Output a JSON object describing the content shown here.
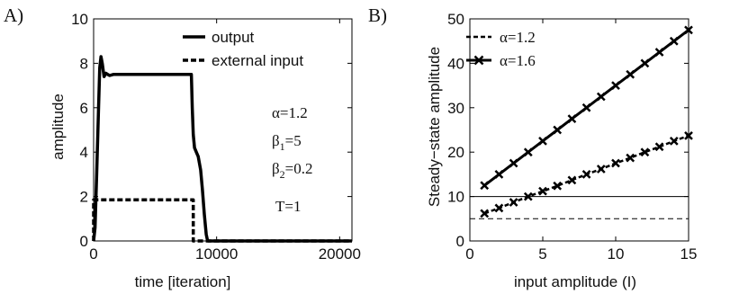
{
  "chart_data": [
    {
      "panel_label": "A)",
      "type": "line",
      "xlabel": "time [iteration]",
      "ylabel": "amplitude",
      "xlim": [
        0,
        21000
      ],
      "ylim": [
        0,
        10
      ],
      "x_ticks": [
        "0",
        "10000",
        "20000"
      ],
      "y_ticks": [
        "0",
        "2",
        "4",
        "6",
        "8",
        "10"
      ],
      "legend_position": "top-right",
      "series": [
        {
          "name": "output",
          "style": "solid",
          "x": [
            0,
            120,
            250,
            400,
            500,
            600,
            700,
            850,
            1000,
            1150,
            1300,
            1600,
            2000,
            4000,
            6000,
            7950,
            8020,
            8100,
            8200,
            8350,
            8500,
            8700,
            8850,
            9000,
            9150,
            9250,
            9300,
            9400,
            21000
          ],
          "y": [
            0,
            0.6,
            3.0,
            6.0,
            7.8,
            8.3,
            8.0,
            7.4,
            7.55,
            7.5,
            7.45,
            7.5,
            7.5,
            7.5,
            7.5,
            7.5,
            6.0,
            4.8,
            4.2,
            4.0,
            3.8,
            3.2,
            2.3,
            1.2,
            0.3,
            0.05,
            0,
            0,
            0
          ]
        },
        {
          "name": "external input",
          "style": "dashed",
          "x": [
            0,
            0,
            8100,
            8100,
            21000
          ],
          "y": [
            0,
            1.85,
            1.85,
            0,
            0
          ]
        }
      ],
      "annotations": {
        "alpha": "α=1.2",
        "beta1_base": "β",
        "beta1_sub": "1",
        "beta1_val": "=5",
        "beta2_base": "β",
        "beta2_sub": "2",
        "beta2_val": "=0.2",
        "T": "T=1"
      }
    },
    {
      "panel_label": "B)",
      "type": "line",
      "xlabel": "input amplitude (I)",
      "ylabel": "Steady−state  amplitude",
      "xlim": [
        0,
        15
      ],
      "ylim": [
        0,
        50
      ],
      "x_ticks": [
        "0",
        "5",
        "10",
        "15"
      ],
      "y_ticks": [
        "0",
        "10",
        "20",
        "30",
        "40",
        "50"
      ],
      "legend_position": "top-left",
      "series": [
        {
          "name": "α=1.2",
          "style": "dashed",
          "marker": "x",
          "x": [
            1,
            2,
            3,
            4,
            5,
            6,
            7,
            8,
            9,
            10,
            11,
            12,
            13,
            14,
            15
          ],
          "y": [
            6.2,
            7.4,
            8.7,
            10.0,
            11.2,
            12.4,
            13.7,
            15.0,
            16.2,
            17.5,
            18.7,
            20.0,
            21.2,
            22.5,
            23.7
          ]
        },
        {
          "name": "α=1.6",
          "style": "solid",
          "marker": "x",
          "x": [
            1,
            2,
            3,
            4,
            5,
            6,
            7,
            8,
            9,
            10,
            11,
            12,
            13,
            14,
            15
          ],
          "y": [
            12.5,
            15.0,
            17.5,
            20.0,
            22.5,
            25.0,
            27.5,
            30.0,
            32.5,
            35.0,
            37.5,
            40.0,
            42.5,
            45.0,
            47.5
          ]
        }
      ],
      "reference_lines": [
        {
          "y": 10,
          "style": "solid"
        },
        {
          "y": 5,
          "style": "dashed"
        }
      ]
    }
  ]
}
